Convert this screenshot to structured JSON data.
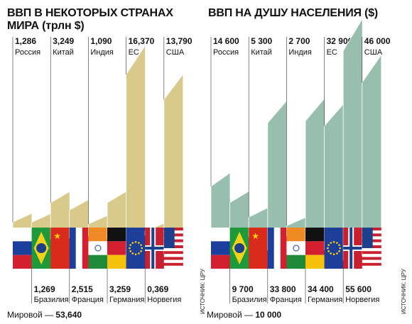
{
  "charts": [
    {
      "title": "ВВП В НЕКОТОРЫХ СТРАНАХ МИРА (трлн $)",
      "total_label": "Мировой — ",
      "total_value": "53,640",
      "source": "ИСТОЧНИК: ЦРУ"
    },
    {
      "title": "ВВП НА ДУШУ НАСЕЛЕНИЯ ($)",
      "total_label": "Мировой — ",
      "total_value": "10 000",
      "source": "ИСТОЧНИК: ЦРУ"
    }
  ],
  "colors": {
    "gdp_bar": "#d9c98a",
    "gdp_side": "#bda968",
    "pc_bar": "#98bfae",
    "pc_side": "#7aa492"
  },
  "chart_data": [
    {
      "type": "bar",
      "title": "ВВП В НЕКОТОРЫХ СТРАНАХ МИРА (трлн $)",
      "categories": [
        "Россия",
        "Бразилия",
        "Китай",
        "Франция",
        "Индия",
        "Германия",
        "ЕС",
        "Норвегия",
        "США"
      ],
      "values": [
        1.286,
        1.269,
        3.249,
        2.515,
        1.09,
        3.259,
        16.37,
        0.369,
        13.79
      ],
      "value_labels": [
        "1,286",
        "1,269",
        "3,249",
        "2,515",
        "1,090",
        "3,259",
        "16,370",
        "0,369",
        "13,790"
      ],
      "flags": [
        "russia-flag",
        "brazil-flag",
        "china-flag",
        "france-flag",
        "india-flag",
        "germany-flag",
        "eu-flag",
        "norway-flag",
        "usa-flag"
      ],
      "total": "53,640"
    },
    {
      "type": "bar",
      "title": "ВВП НА ДУШУ НАСЕЛЕНИЯ ($)",
      "categories": [
        "Россия",
        "Бразилия",
        "Китай",
        "Франция",
        "Индия",
        "Германия",
        "ЕС",
        "Норвегия",
        "США"
      ],
      "values": [
        14600,
        9700,
        5300,
        33800,
        2700,
        34400,
        32900,
        55600,
        46000
      ],
      "value_labels": [
        "14 600",
        "9 700",
        "5 300",
        "33 800",
        "2 700",
        "34 400",
        "32 900",
        "55 600",
        "46 000"
      ],
      "flags": [
        "russia-flag",
        "brazil-flag",
        "china-flag",
        "france-flag",
        "india-flag",
        "germany-flag",
        "eu-flag",
        "norway-flag",
        "usa-flag"
      ],
      "total": "10 000"
    }
  ]
}
